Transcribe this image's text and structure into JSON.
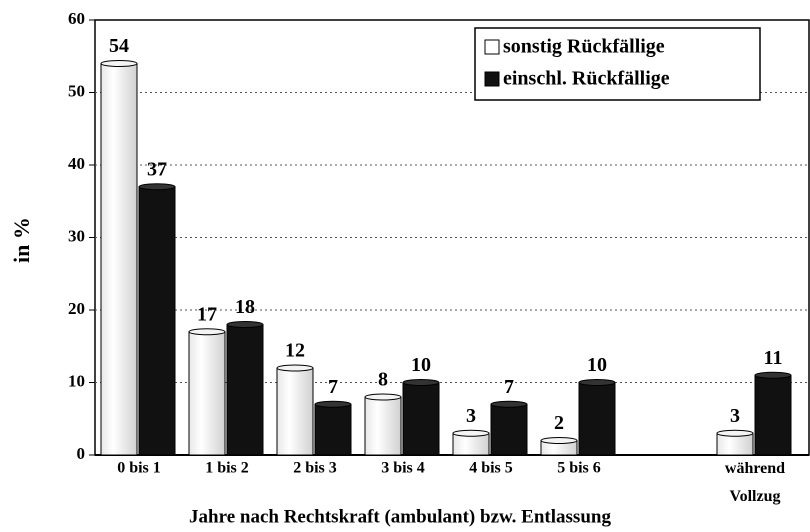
{
  "chart_data": {
    "type": "bar",
    "x_label": "Jahre nach Rechtskraft (ambulant) bzw. Entlassung",
    "y_label": "in %",
    "categories": [
      "0 bis 1",
      "1 bis 2",
      "2 bis 3",
      "3 bis 4",
      "4 bis 5",
      "5 bis 6",
      null,
      "während\nVollzug"
    ],
    "series": [
      {
        "name": "sonstig Rückfällige",
        "color": "#ffffff",
        "values": [
          54,
          17,
          12,
          8,
          3,
          2,
          null,
          3
        ]
      },
      {
        "name": "einschl. Rückfällige",
        "color": "#111111",
        "values": [
          37,
          18,
          7,
          10,
          7,
          10,
          null,
          11
        ]
      }
    ],
    "ylim": [
      0,
      60
    ],
    "yticks": [
      0,
      10,
      20,
      30,
      40,
      50,
      60
    ],
    "grid": true,
    "legend": "top-right"
  }
}
